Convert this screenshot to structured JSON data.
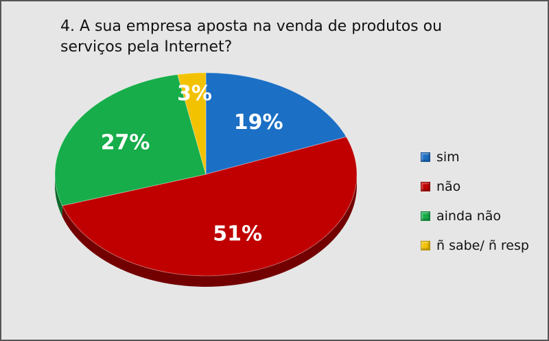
{
  "title": "4. A sua empresa aposta na venda de produtos ou serviços pela Internet?",
  "chart_data": {
    "type": "pie",
    "title": "4. A sua empresa aposta na venda de produtos ou serviços pela Internet?",
    "legend_position": "right",
    "slices": [
      {
        "label": "sim",
        "value": 19,
        "display": "19%",
        "color": "#1b6fc4"
      },
      {
        "label": "não",
        "value": 51,
        "display": "51%",
        "color": "#c00000"
      },
      {
        "label": "ainda não",
        "value": 27,
        "display": "27%",
        "color": "#16ad4a"
      },
      {
        "label": "ñ sabe/ ñ resp",
        "value": 3,
        "display": "3%",
        "color": "#f2c200"
      }
    ]
  },
  "legend": {
    "items": [
      {
        "label": "sim",
        "color": "#1b6fc4"
      },
      {
        "label": "não",
        "color": "#c00000"
      },
      {
        "label": "ainda não",
        "color": "#16ad4a"
      },
      {
        "label": "ñ sabe/ ñ resp",
        "color": "#f2c200"
      }
    ]
  }
}
